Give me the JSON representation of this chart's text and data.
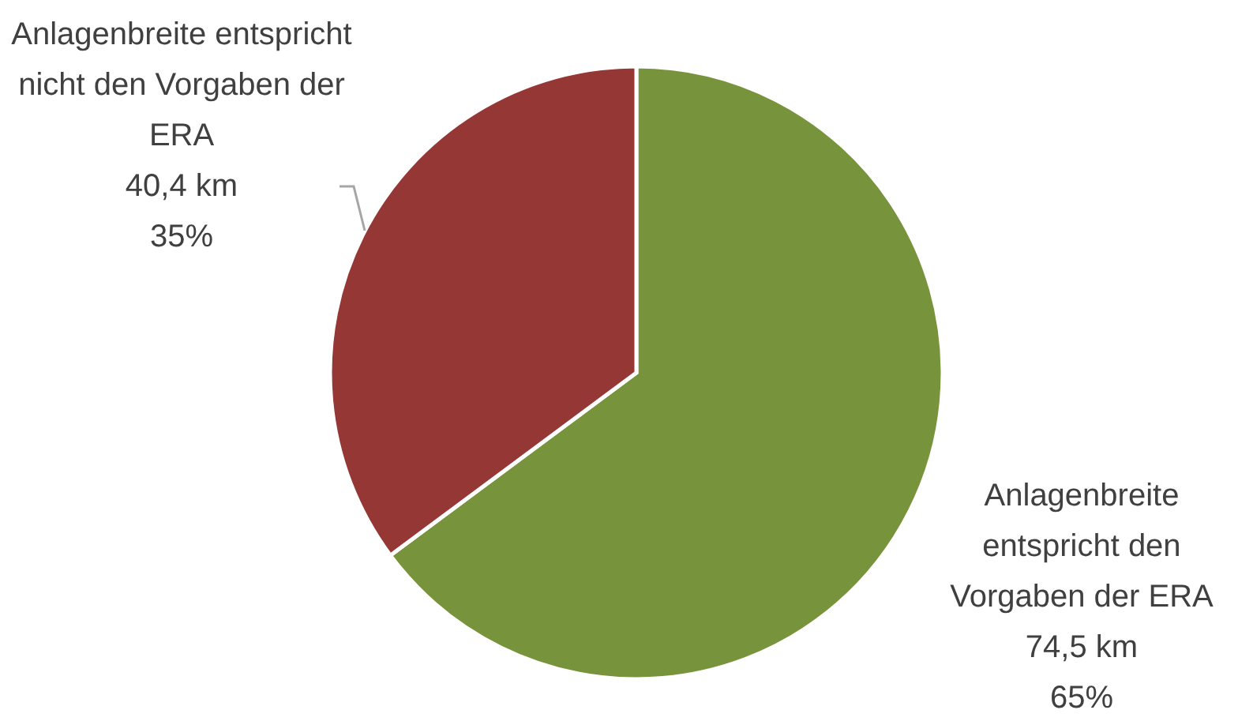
{
  "chart_data": {
    "type": "pie",
    "categories": [
      "Anlagenbreite entspricht den Vorgaben der ERA",
      "Anlagenbreite entspricht nicht den Vorgaben der ERA"
    ],
    "values": [
      74.5,
      40.4
    ],
    "colors": [
      "#77933c",
      "#953735"
    ],
    "value_labels": [
      "74,5 km\n65%",
      "40,4 km\n35%"
    ],
    "legend": false
  }
}
